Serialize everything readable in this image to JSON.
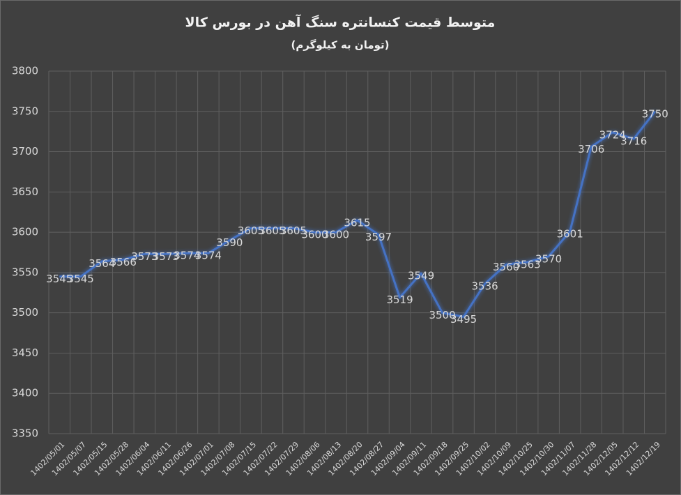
{
  "chart_data": {
    "type": "line",
    "title": "متوسط قیمت کنسانتره سنگ آهن در بورس کالا",
    "subtitle": "(تومان به کیلوگرم)",
    "categories": [
      "1402/05/01",
      "1402/05/07",
      "1402/05/15",
      "1402/05/28",
      "1402/06/04",
      "1402/06/11",
      "1402/06/26",
      "1402/07/01",
      "1402/07/08",
      "1402/07/15",
      "1402/07/22",
      "1402/07/29",
      "1402/08/06",
      "1402/08/13",
      "1402/08/20",
      "1402/08/27",
      "1402/09/04",
      "1402/09/11",
      "1402/09/18",
      "1402/09/25",
      "1402/10/02",
      "1402/10/09",
      "1402/10/25",
      "1402/10/30",
      "1402/11/07",
      "1402/11/28",
      "1402/12/05",
      "1402/12/12",
      "1402/12/19"
    ],
    "values": [
      3545,
      3545,
      3564,
      3566,
      3573,
      3573,
      3574,
      3574,
      3590,
      3605,
      3605,
      3605,
      3600,
      3600,
      3615,
      3597,
      3519,
      3549,
      3500,
      3495,
      3536,
      3560,
      3563,
      3570,
      3601,
      3706,
      3724,
      3716,
      3750
    ],
    "color": "#4472c4",
    "ylim": [
      3350,
      3800
    ],
    "yticks": [
      3350,
      3400,
      3450,
      3500,
      3550,
      3600,
      3650,
      3700,
      3750,
      3800
    ],
    "grid": true
  }
}
